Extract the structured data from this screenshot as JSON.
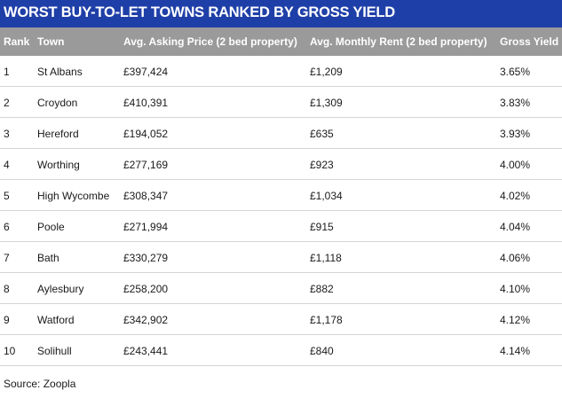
{
  "title": "WORST BUY-TO-LET TOWNS RANKED BY GROSS YIELD",
  "columns": {
    "rank": "Rank",
    "town": "Town",
    "price": "Avg. Asking Price (2 bed property)",
    "rent": "Avg. Monthly Rent (2 bed property)",
    "yield": "Gross Yield"
  },
  "rows": [
    {
      "rank": "1",
      "town": "St Albans",
      "price": "£397,424",
      "rent": "£1,209",
      "yield": "3.65%"
    },
    {
      "rank": "2",
      "town": "Croydon",
      "price": "£410,391",
      "rent": "£1,309",
      "yield": "3.83%"
    },
    {
      "rank": "3",
      "town": "Hereford",
      "price": "£194,052",
      "rent": "£635",
      "yield": "3.93%"
    },
    {
      "rank": "4",
      "town": "Worthing",
      "price": "£277,169",
      "rent": "£923",
      "yield": "4.00%"
    },
    {
      "rank": "5",
      "town": "High Wycombe",
      "price": "£308,347",
      "rent": "£1,034",
      "yield": "4.02%"
    },
    {
      "rank": "6",
      "town": "Poole",
      "price": "£271,994",
      "rent": "£915",
      "yield": "4.04%"
    },
    {
      "rank": "7",
      "town": "Bath",
      "price": "£330,279",
      "rent": "£1,118",
      "yield": "4.06%"
    },
    {
      "rank": "8",
      "town": "Aylesbury",
      "price": "£258,200",
      "rent": "£882",
      "yield": "4.10%"
    },
    {
      "rank": "9",
      "town": "Watford",
      "price": "£342,902",
      "rent": "£1,178",
      "yield": "4.12%"
    },
    {
      "rank": "10",
      "town": "Solihull",
      "price": "£243,441",
      "rent": "£840",
      "yield": "4.14%"
    }
  ],
  "source": "Source: Zoopla",
  "colors": {
    "title_bg": "#1f3fa8",
    "header_bg": "#9a9a9a",
    "row_divider": "#d4d4d4"
  }
}
